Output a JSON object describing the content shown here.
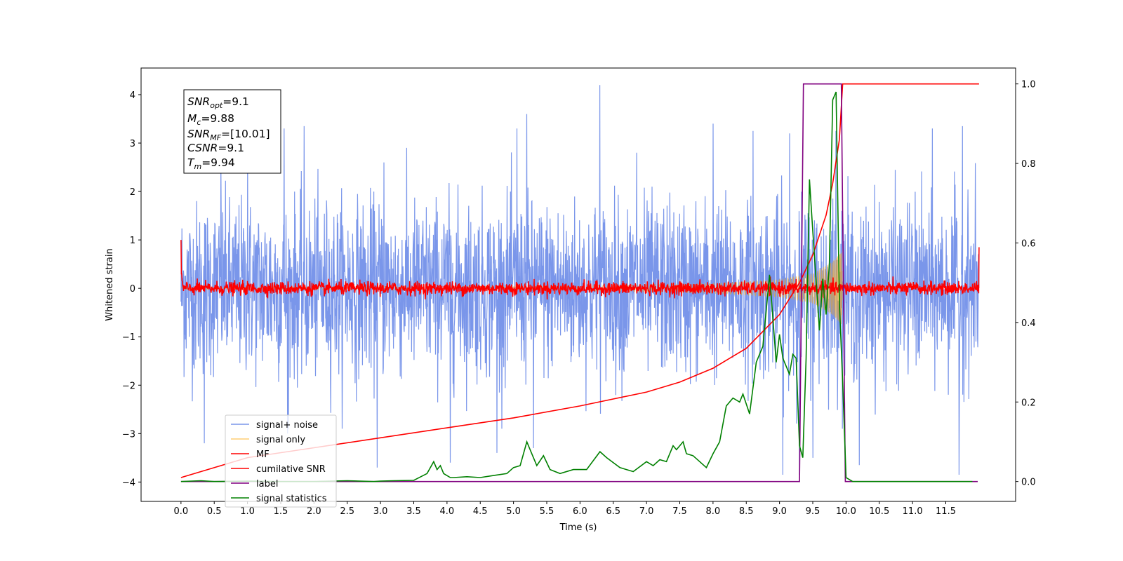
{
  "chart_data": {
    "type": "line",
    "xlabel": "Time (s)",
    "ylabel": "Whitened strain",
    "xlim": [
      -0.6,
      12.55
    ],
    "ylim": [
      -4.4,
      4.55
    ],
    "y2lim": [
      -0.05,
      1.04
    ],
    "grid": false,
    "legend_position": "lower-left",
    "x_ticks": [
      "0.0",
      "0.5",
      "1.0",
      "1.5",
      "2.0",
      "2.5",
      "3.0",
      "3.5",
      "4.0",
      "4.5",
      "5.0",
      "5.5",
      "6.0",
      "6.5",
      "7.0",
      "7.5",
      "8.0",
      "8.5",
      "9.0",
      "9.5",
      "10.0",
      "10.5",
      "11.0",
      "11.5"
    ],
    "y_ticks": [
      "4",
      "3",
      "2",
      "1",
      "0",
      "−1",
      "−2",
      "−3",
      "−4"
    ],
    "y2_ticks": [
      "1.0",
      "0.8",
      "0.6",
      "0.4",
      "0.2",
      "0.0"
    ],
    "colors": {
      "signal_noise": "#4169e1",
      "signal_only": "#ffa500",
      "mf": "#ff0000",
      "cumulative_snr": "#ff0000",
      "label": "#800080",
      "signal_statistics": "#008000"
    },
    "legend": {
      "signal_noise": "signal+ noise",
      "signal_only": "signal only",
      "mf": "MF",
      "cumulative_snr": "cumilative SNR",
      "label": "label",
      "signal_statistics": "signal statistics"
    },
    "annotation": {
      "snr_opt": {
        "symbol": "SNR",
        "sub": "opt",
        "value": "=9.1"
      },
      "mc": {
        "symbol": "M",
        "sub": "c",
        "value": "=9.88"
      },
      "snr_mf": {
        "symbol": "SNR",
        "sub": "MF",
        "value": "=[10.01]"
      },
      "csnr": {
        "symbol": "CSNR",
        "sub": "",
        "value": "=9.1"
      },
      "tm": {
        "symbol": "T",
        "sub": "m",
        "value": "=9.94"
      }
    },
    "series": [
      {
        "name": "signal+ noise",
        "axis": "left",
        "style": "noise-band",
        "x_range": [
          0.0,
          12.0
        ],
        "band_mean": 0.0,
        "typical_extent": [
          -1.6,
          1.6
        ],
        "peaks_x": [
          0.6,
          1.0,
          1.55,
          1.85,
          3.05,
          4.05,
          5.05,
          5.2,
          6.3,
          6.85,
          8.0,
          8.6,
          9.15,
          9.85,
          11.3,
          11.75
        ],
        "peaks_y": [
          2.6,
          2.7,
          3.3,
          3.35,
          2.6,
          3.1,
          3.3,
          3.6,
          4.2,
          2.8,
          3.4,
          3.25,
          3.2,
          3.25,
          3.3,
          3.35
        ],
        "troughs_x": [
          0.35,
          1.6,
          2.95,
          4.05,
          4.75,
          5.3,
          9.05,
          9.3,
          9.5,
          10.2,
          11.7
        ],
        "troughs_y": [
          -3.2,
          -3.0,
          -3.7,
          -3.6,
          -3.4,
          -3.3,
          -3.85,
          -3.85,
          -3.5,
          -3.65,
          -3.85
        ]
      },
      {
        "name": "signal only",
        "axis": "left",
        "style": "chirp",
        "x": [
          0.0,
          6.0,
          8.0,
          9.0,
          9.5,
          9.8,
          9.93,
          9.95
        ],
        "amplitude": [
          0.02,
          0.05,
          0.1,
          0.18,
          0.3,
          0.55,
          0.75,
          0.0
        ]
      },
      {
        "name": "MF",
        "axis": "left",
        "style": "noise-band",
        "x_range": [
          0.0,
          12.0
        ],
        "band_mean": 0.0,
        "typical_extent": [
          -0.15,
          0.15
        ],
        "start_value": 1.0,
        "end_value": 0.85
      },
      {
        "name": "cumilative SNR",
        "axis": "right",
        "x": [
          0.0,
          1.0,
          2.0,
          3.0,
          4.0,
          5.0,
          6.0,
          7.0,
          7.5,
          8.0,
          8.5,
          9.0,
          9.3,
          9.5,
          9.7,
          9.8,
          9.9,
          9.95,
          12.0
        ],
        "values": [
          0.01,
          0.06,
          0.085,
          0.11,
          0.135,
          0.16,
          0.19,
          0.225,
          0.25,
          0.285,
          0.335,
          0.42,
          0.5,
          0.57,
          0.67,
          0.75,
          0.86,
          1.0,
          1.0
        ]
      },
      {
        "name": "label",
        "axis": "right",
        "x": [
          0.0,
          9.3,
          9.36,
          9.93,
          9.99,
          11.98
        ],
        "values": [
          0.0,
          0.0,
          1.0,
          1.0,
          0.0,
          0.0
        ]
      },
      {
        "name": "signal statistics",
        "axis": "right",
        "x": [
          0.0,
          0.3,
          0.5,
          1.0,
          1.5,
          2.0,
          2.5,
          2.9,
          3.0,
          3.2,
          3.5,
          3.7,
          3.8,
          3.85,
          3.9,
          3.95,
          4.05,
          4.1,
          4.3,
          4.5,
          4.7,
          4.9,
          5.0,
          5.1,
          5.2,
          5.3,
          5.35,
          5.45,
          5.55,
          5.7,
          5.9,
          6.1,
          6.3,
          6.4,
          6.6,
          6.8,
          7.0,
          7.1,
          7.2,
          7.3,
          7.4,
          7.45,
          7.55,
          7.6,
          7.7,
          7.8,
          7.9,
          8.0,
          8.1,
          8.2,
          8.3,
          8.4,
          8.45,
          8.55,
          8.65,
          8.7,
          8.75,
          8.85,
          8.9,
          8.95,
          9.0,
          9.05,
          9.15,
          9.2,
          9.25,
          9.3,
          9.35,
          9.4,
          9.45,
          9.5,
          9.6,
          9.65,
          9.7,
          9.75,
          9.8,
          9.85,
          9.9,
          9.95,
          10.0,
          10.1,
          11.0,
          11.9
        ],
        "values": [
          0.0,
          0.002,
          0.0,
          0.001,
          0.0,
          0.0,
          0.002,
          0.0,
          0.001,
          0.002,
          0.003,
          0.02,
          0.05,
          0.03,
          0.04,
          0.02,
          0.01,
          0.01,
          0.012,
          0.01,
          0.015,
          0.02,
          0.035,
          0.04,
          0.1,
          0.06,
          0.04,
          0.065,
          0.03,
          0.02,
          0.03,
          0.03,
          0.075,
          0.06,
          0.035,
          0.025,
          0.05,
          0.04,
          0.055,
          0.05,
          0.09,
          0.08,
          0.1,
          0.07,
          0.065,
          0.05,
          0.035,
          0.07,
          0.1,
          0.19,
          0.21,
          0.2,
          0.22,
          0.17,
          0.3,
          0.32,
          0.34,
          0.52,
          0.41,
          0.3,
          0.37,
          0.31,
          0.27,
          0.32,
          0.31,
          0.09,
          0.06,
          0.31,
          0.76,
          0.63,
          0.38,
          0.51,
          0.42,
          0.55,
          0.96,
          0.98,
          0.45,
          0.25,
          0.01,
          0.0,
          0.0,
          0.0
        ]
      }
    ]
  }
}
